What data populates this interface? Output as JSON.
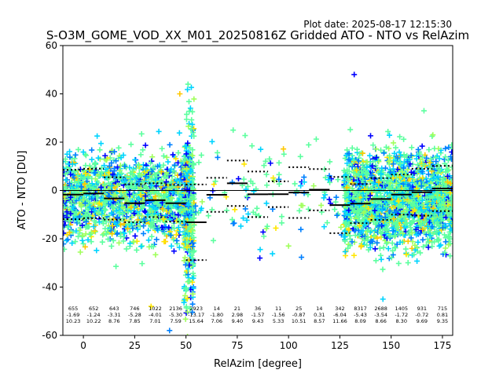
{
  "plot_date": "Plot date: 2025-08-17 12:15:30",
  "chart_data": {
    "type": "scatter",
    "title": "S-O3M_GOME_VOD_XX_M01_20250816Z Gridded ATO - NTO vs RelAzim",
    "xlabel": "RelAzim [degree]",
    "ylabel": "ATO - NTO [DU]",
    "xlim": [
      -10,
      180
    ],
    "ylim": [
      -60,
      60
    ],
    "xticks": [
      0,
      25,
      50,
      75,
      100,
      125,
      150,
      175
    ],
    "yticks": [
      -60,
      -40,
      -20,
      0,
      20,
      40,
      60
    ],
    "grid": false,
    "marker": "+",
    "colors": [
      "#0000ff",
      "#0080ff",
      "#00d4ff",
      "#5cff9f",
      "#a0ff5c",
      "#ffe600",
      "#ffc800"
    ],
    "zero_line": 0,
    "bins": [
      {
        "x0": -10,
        "x1": 0,
        "n": "655",
        "mean": "-1.69",
        "std": "10.23"
      },
      {
        "x0": 0,
        "x1": 10,
        "n": "652",
        "mean": "-1.24",
        "std": "10.22"
      },
      {
        "x0": 10,
        "x1": 20,
        "n": "643",
        "mean": "-3.31",
        "std": "8.76"
      },
      {
        "x0": 20,
        "x1": 30,
        "n": "746",
        "mean": "-5.28",
        "std": "7.85"
      },
      {
        "x0": 30,
        "x1": 40,
        "n": "1022",
        "mean": "-4.01",
        "std": "7.01"
      },
      {
        "x0": 40,
        "x1": 50,
        "n": "2136",
        "mean": "-5.30",
        "std": "7.59"
      },
      {
        "x0": 50,
        "x1": 60,
        "n": "2923",
        "mean": "-13.17",
        "std": "15.64"
      },
      {
        "x0": 60,
        "x1": 70,
        "n": "14",
        "mean": "-1.80",
        "std": "7.06"
      },
      {
        "x0": 70,
        "x1": 80,
        "n": "21",
        "mean": "2.98",
        "std": "9.40"
      },
      {
        "x0": 80,
        "x1": 90,
        "n": "36",
        "mean": "-1.57",
        "std": "9.43"
      },
      {
        "x0": 90,
        "x1": 100,
        "n": "11",
        "mean": "-1.56",
        "std": "5.33"
      },
      {
        "x0": 100,
        "x1": 110,
        "n": "25",
        "mean": "-0.87",
        "std": "10.51"
      },
      {
        "x0": 110,
        "x1": 120,
        "n": "14",
        "mean": "0.31",
        "std": "8.57"
      },
      {
        "x0": 120,
        "x1": 130,
        "n": "342",
        "mean": "-6.04",
        "std": "11.66"
      },
      {
        "x0": 130,
        "x1": 140,
        "n": "8317",
        "mean": "-5.43",
        "std": "8.09"
      },
      {
        "x0": 140,
        "x1": 150,
        "n": "2688",
        "mean": "-3.54",
        "std": "8.66"
      },
      {
        "x0": 150,
        "x1": 160,
        "n": "1405",
        "mean": "-1.72",
        "std": "8.30"
      },
      {
        "x0": 160,
        "x1": 170,
        "n": "931",
        "mean": "-0.72",
        "std": "9.69"
      },
      {
        "x0": 170,
        "x1": 180,
        "n": "715",
        "mean": "0.81",
        "std": "9.35"
      }
    ],
    "scatter_clusters": [
      {
        "x0": -10,
        "x1": 53,
        "y_center": -3,
        "y_spread": 18,
        "count": 1500
      },
      {
        "x0": 49,
        "x1": 54,
        "y_center": -8,
        "y_spread": 40,
        "count": 350
      },
      {
        "x0": 54,
        "x1": 127,
        "y_center": -1,
        "y_spread": 22,
        "count": 120
      },
      {
        "x0": 127,
        "x1": 180,
        "y_center": -4,
        "y_spread": 20,
        "count": 1900
      }
    ],
    "outliers": [
      {
        "x": 132,
        "y": 48
      },
      {
        "x": 51,
        "y": 44
      },
      {
        "x": 47,
        "y": 40
      },
      {
        "x": 146,
        "y": -45
      },
      {
        "x": 33,
        "y": -48
      },
      {
        "x": 42,
        "y": -58
      },
      {
        "x": 100,
        "y": -23
      },
      {
        "x": 86,
        "y": -28
      },
      {
        "x": 166,
        "y": 33
      }
    ]
  }
}
